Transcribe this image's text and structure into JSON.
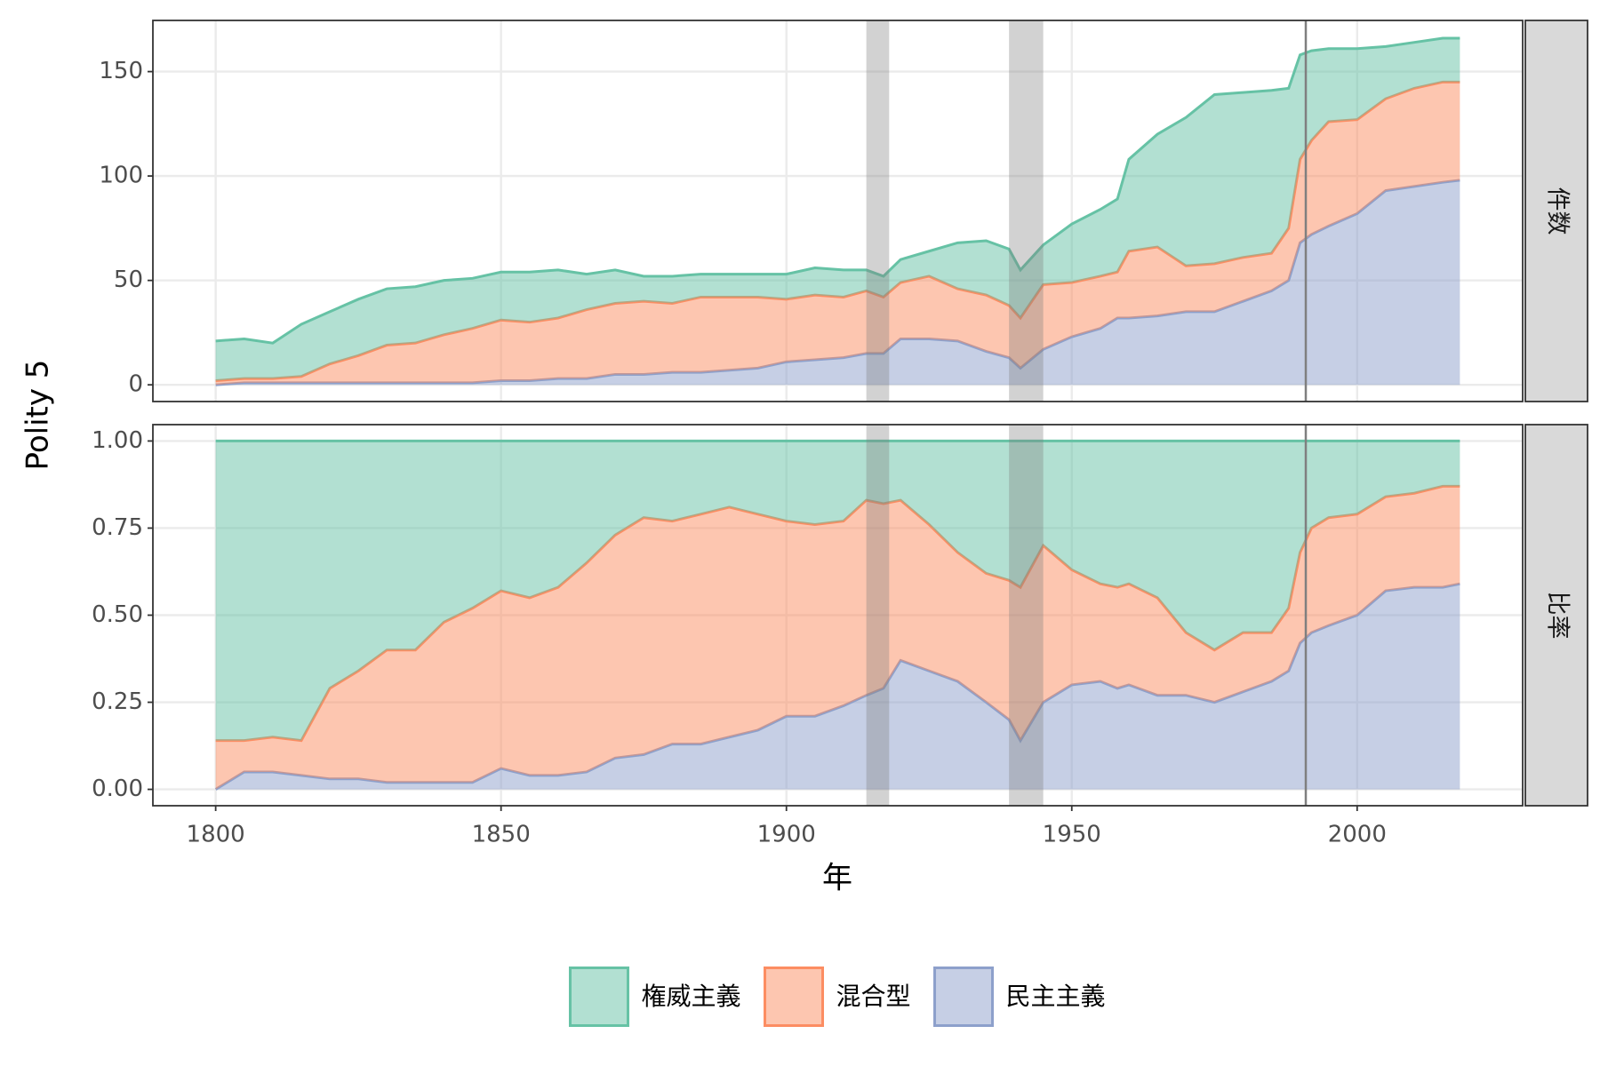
{
  "chart_data": {
    "type": "area",
    "stacked": true,
    "x_label": "年",
    "y_label": "Polity 5",
    "legend_position": "bottom",
    "grid": true,
    "xlim": [
      1789,
      2029
    ],
    "xticks": [
      1800,
      1850,
      1900,
      1950,
      2000
    ],
    "x": [
      1800,
      1805,
      1810,
      1815,
      1820,
      1825,
      1830,
      1835,
      1840,
      1845,
      1850,
      1855,
      1860,
      1865,
      1870,
      1875,
      1880,
      1885,
      1890,
      1895,
      1900,
      1905,
      1910,
      1914,
      1917,
      1920,
      1925,
      1930,
      1935,
      1939,
      1941,
      1945,
      1950,
      1955,
      1958,
      1960,
      1965,
      1970,
      1975,
      1980,
      1985,
      1988,
      1990,
      1992,
      1995,
      2000,
      2005,
      2010,
      2015,
      2018
    ],
    "shaded_periods": [
      [
        1914,
        1918
      ],
      [
        1939,
        1945
      ]
    ],
    "vline": 1991,
    "series": [
      {
        "name": "権威主義",
        "color": "#66c2a5"
      },
      {
        "name": "混合型",
        "color": "#fc8d62"
      },
      {
        "name": "民主主義",
        "color": "#8da0cb"
      }
    ],
    "panels": [
      {
        "label": "件数",
        "ylim": [
          -8,
          174.5
        ],
        "yticks": [
          0,
          50,
          100,
          150
        ],
        "series": [
          {
            "values": [
              19,
              19,
              17,
              25,
              25,
              27,
              27,
              27,
              26,
              24,
              23,
              24,
              23,
              17,
              16,
              12,
              13,
              11,
              11,
              11,
              12,
              13,
              13,
              10,
              10,
              11,
              12,
              22,
              26,
              27,
              23,
              19,
              28,
              32,
              35,
              44,
              54,
              71,
              81,
              79,
              78,
              67,
              50,
              43,
              35,
              34,
              25,
              22,
              21,
              21
            ]
          },
          {
            "values": [
              2,
              2,
              2,
              3,
              9,
              13,
              18,
              19,
              23,
              26,
              29,
              28,
              29,
              33,
              34,
              35,
              33,
              36,
              35,
              34,
              30,
              31,
              29,
              30,
              27,
              27,
              30,
              25,
              27,
              25,
              24,
              31,
              26,
              25,
              22,
              32,
              33,
              22,
              23,
              21,
              18,
              25,
              40,
              45,
              50,
              45,
              44,
              47,
              48,
              47
            ]
          },
          {
            "values": [
              0,
              1,
              1,
              1,
              1,
              1,
              1,
              1,
              1,
              1,
              2,
              2,
              3,
              3,
              5,
              5,
              6,
              6,
              7,
              8,
              11,
              12,
              13,
              15,
              15,
              22,
              22,
              21,
              16,
              13,
              8,
              17,
              23,
              27,
              32,
              32,
              33,
              35,
              35,
              40,
              45,
              50,
              68,
              72,
              76,
              82,
              93,
              95,
              97,
              98
            ]
          }
        ]
      },
      {
        "label": "比率",
        "ylim": [
          -0.047,
          1.047
        ],
        "yticks": [
          {
            "value": 0,
            "label": "0.00"
          },
          {
            "value": 0.25,
            "label": "0.25"
          },
          {
            "value": 0.5,
            "label": "0.50"
          },
          {
            "value": 0.75,
            "label": "0.75"
          },
          {
            "value": 1,
            "label": "1.00"
          }
        ],
        "series": [
          {
            "values": [
              0.86,
              0.86,
              0.85,
              0.86,
              0.71,
              0.66,
              0.6,
              0.6,
              0.52,
              0.48,
              0.43,
              0.45,
              0.42,
              0.35,
              0.27,
              0.22,
              0.23,
              0.21,
              0.19,
              0.21,
              0.23,
              0.24,
              0.23,
              0.17,
              0.18,
              0.17,
              0.24,
              0.32,
              0.38,
              0.4,
              0.42,
              0.3,
              0.37,
              0.41,
              0.42,
              0.41,
              0.45,
              0.55,
              0.6,
              0.55,
              0.55,
              0.48,
              0.32,
              0.25,
              0.22,
              0.21,
              0.16,
              0.15,
              0.13,
              0.13
            ]
          },
          {
            "values": [
              0.14,
              0.09,
              0.1,
              0.1,
              0.26,
              0.31,
              0.38,
              0.38,
              0.46,
              0.5,
              0.51,
              0.51,
              0.54,
              0.6,
              0.64,
              0.68,
              0.64,
              0.66,
              0.66,
              0.62,
              0.56,
              0.55,
              0.53,
              0.56,
              0.53,
              0.46,
              0.42,
              0.37,
              0.37,
              0.4,
              0.44,
              0.45,
              0.33,
              0.28,
              0.29,
              0.29,
              0.28,
              0.18,
              0.15,
              0.17,
              0.14,
              0.18,
              0.26,
              0.3,
              0.31,
              0.29,
              0.27,
              0.27,
              0.29,
              0.28
            ]
          },
          {
            "values": [
              0,
              0.05,
              0.05,
              0.04,
              0.03,
              0.03,
              0.02,
              0.02,
              0.02,
              0.02,
              0.06,
              0.04,
              0.04,
              0.05,
              0.09,
              0.1,
              0.13,
              0.13,
              0.15,
              0.17,
              0.21,
              0.21,
              0.24,
              0.27,
              0.29,
              0.37,
              0.34,
              0.31,
              0.25,
              0.2,
              0.14,
              0.25,
              0.3,
              0.31,
              0.29,
              0.3,
              0.27,
              0.27,
              0.25,
              0.28,
              0.31,
              0.34,
              0.42,
              0.45,
              0.47,
              0.5,
              0.57,
              0.58,
              0.58,
              0.59
            ]
          }
        ]
      }
    ]
  }
}
